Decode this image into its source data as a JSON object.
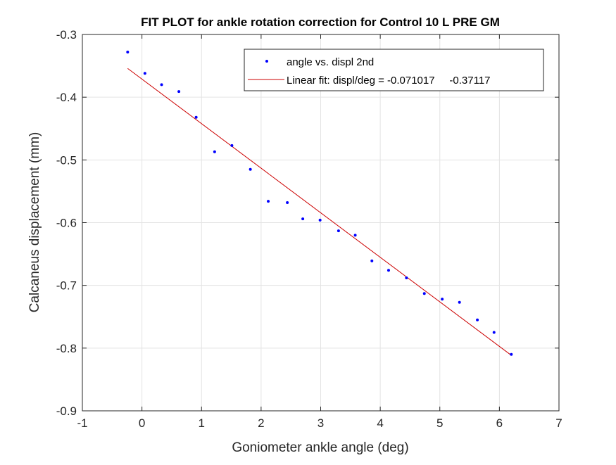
{
  "chart_data": {
    "type": "scatter",
    "title": "FIT PLOT for ankle rotation correction for Control 10 L PRE GM",
    "xlabel": "Goniometer ankle angle (deg)",
    "ylabel": "Calcaneus displacement (mm)",
    "xlim": [
      -1,
      7
    ],
    "ylim": [
      -0.9,
      -0.3
    ],
    "xticks": [
      -1,
      0,
      1,
      2,
      3,
      4,
      5,
      6,
      7
    ],
    "yticks": [
      -0.9,
      -0.8,
      -0.7,
      -0.6,
      -0.5,
      -0.4,
      -0.3
    ],
    "xtick_labels": [
      "-1",
      "0",
      "1",
      "2",
      "3",
      "4",
      "5",
      "6",
      "7"
    ],
    "ytick_labels": [
      "-0.9",
      "-0.8",
      "-0.7",
      "-0.6",
      "-0.5",
      "-0.4",
      "-0.3"
    ],
    "grid": true,
    "legend_position": "top-right",
    "series": [
      {
        "name": "angle vs. displ 2nd",
        "kind": "points",
        "color": "#0000ff",
        "x": [
          -0.24,
          0.05,
          0.33,
          0.62,
          0.91,
          1.22,
          1.51,
          1.82,
          2.12,
          2.44,
          2.7,
          2.99,
          3.3,
          3.58,
          3.86,
          4.14,
          4.44,
          4.74,
          5.04,
          5.33,
          5.63,
          5.91,
          6.2
        ],
        "y": [
          -0.328,
          -0.362,
          -0.38,
          -0.391,
          -0.432,
          -0.487,
          -0.477,
          -0.515,
          -0.566,
          -0.568,
          -0.594,
          -0.596,
          -0.613,
          -0.62,
          -0.661,
          -0.676,
          -0.688,
          -0.713,
          -0.722,
          -0.727,
          -0.755,
          -0.775,
          -0.81
        ]
      },
      {
        "name": "Linear fit: displ/deg = -0.071017     -0.37117",
        "kind": "line",
        "color": "#cc0000",
        "slope": -0.071017,
        "intercept": -0.37117,
        "x": [
          -0.24,
          6.2
        ],
        "y": [
          -0.35413,
          -0.81148
        ]
      }
    ]
  }
}
